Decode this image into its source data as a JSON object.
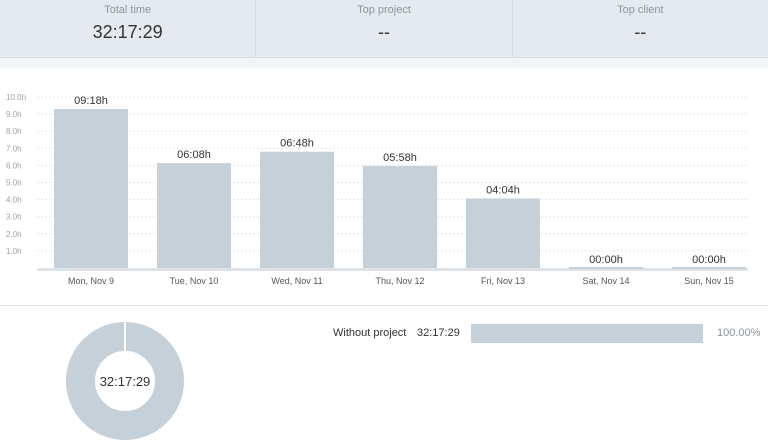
{
  "summary": {
    "total_time_label": "Total time",
    "total_time_value": "32:17:29",
    "top_project_label": "Top project",
    "top_project_value": "--",
    "top_client_label": "Top client",
    "top_client_value": "--"
  },
  "chart_data": {
    "type": "bar",
    "categories": [
      "Mon, Nov 9",
      "Tue, Nov 10",
      "Wed, Nov 11",
      "Thu, Nov 12",
      "Fri, Nov 13",
      "Sat, Nov 14",
      "Sun, Nov 15"
    ],
    "values": [
      9.3,
      6.133,
      6.8,
      5.967,
      4.067,
      0,
      0
    ],
    "data_labels": [
      "09:18h",
      "06:08h",
      "06:48h",
      "05:58h",
      "04:04h",
      "00:00h",
      "00:00h"
    ],
    "yticks": [
      "10.0h",
      "9.0h",
      "8.0h",
      "7.0h",
      "6.0h",
      "5.0h",
      "4.0h",
      "3.0h",
      "2.0h",
      "1.0h"
    ],
    "ylim": [
      0,
      10
    ],
    "grid": true,
    "bar_color": "#c5d0d8"
  },
  "donut": {
    "center_label": "32:17:29",
    "fraction": 1.0,
    "color": "#c5d0d8"
  },
  "breakdown": {
    "project_name": "Without project",
    "duration": "32:17:29",
    "percent_label": "100.00%",
    "fraction": 1.0
  }
}
